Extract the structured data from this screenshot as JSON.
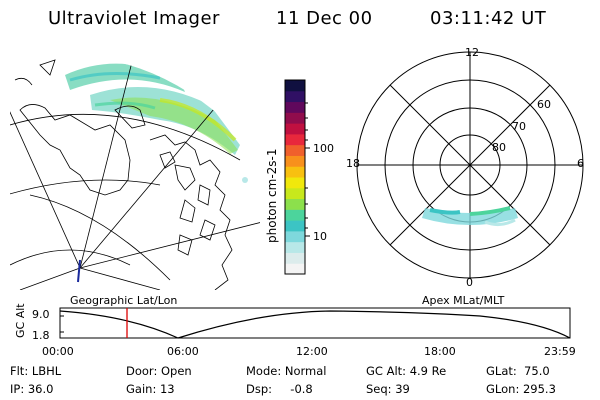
{
  "header": {
    "instrument": "Ultraviolet Imager",
    "date": "11 Dec 00",
    "time": "03:11:42 UT"
  },
  "left_panel": {
    "label": "Geographic Lat/Lon"
  },
  "colorbar": {
    "unit_label": "photon cm-2s-1",
    "ticks": [
      "100",
      "10"
    ],
    "colors": [
      "#f4f4f4",
      "#dcecec",
      "#b8e8e8",
      "#7ed8dc",
      "#3cc4c4",
      "#4cd49c",
      "#8ce04c",
      "#c8e81c",
      "#f0e80c",
      "#f8c010",
      "#f8901c",
      "#f0602c",
      "#e8283c",
      "#c01040",
      "#900c4c",
      "#60085c",
      "#301064",
      "#101040"
    ]
  },
  "polar_plot": {
    "label": "Apex MLat/MLT",
    "mlt_labels": {
      "top": "12",
      "bottom": "0",
      "left": "18",
      "right": "6"
    },
    "lat_labels": [
      "60",
      "70",
      "80"
    ]
  },
  "timeline": {
    "ylabel": "GC Alt",
    "yticks": [
      "9.0",
      "1.8"
    ],
    "xticks": [
      "00:00",
      "06:00",
      "12:00",
      "18:00",
      "23:59"
    ],
    "marker_color": "#dd0000"
  },
  "info": {
    "flt": "Flt: LBHL",
    "ip": "IP: 36.0",
    "door": "Door: Open",
    "gain": "Gain: 13",
    "mode": "Mode: Normal",
    "dsp": "Dsp:     -0.8",
    "gcalt": "GC Alt: 4.9 Re",
    "seq": "Seq: 39",
    "glat": "GLat:  75.0",
    "glon": "GLon: 295.3"
  }
}
